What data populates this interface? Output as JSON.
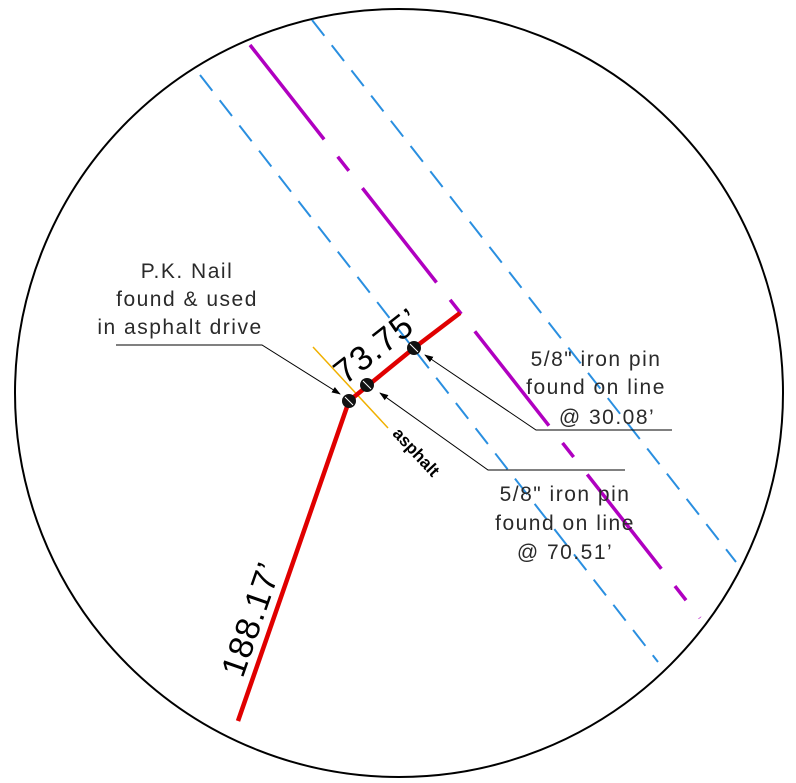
{
  "diagram": {
    "colors": {
      "boundary": "#e00000",
      "centerline": "#b000c0",
      "right_of_way": "#2a8fe0",
      "asphalt_edge": "#f0b000",
      "circle": "#000000"
    },
    "labels": {
      "distance_main": "188.17’",
      "distance_short": "73.75’",
      "asphalt": "asphalt"
    },
    "callouts": {
      "pk_nail": {
        "line1": "P.K. Nail",
        "line2": "found & used",
        "line3": "in asphalt drive"
      },
      "pin_upper": {
        "line1": "5/8\" iron pin",
        "line2": "found on line",
        "line3": "@ 30.08’"
      },
      "pin_lower": {
        "line1": "5/8\" iron pin",
        "line2": "found on line",
        "line3": "@ 70.51’"
      }
    }
  }
}
